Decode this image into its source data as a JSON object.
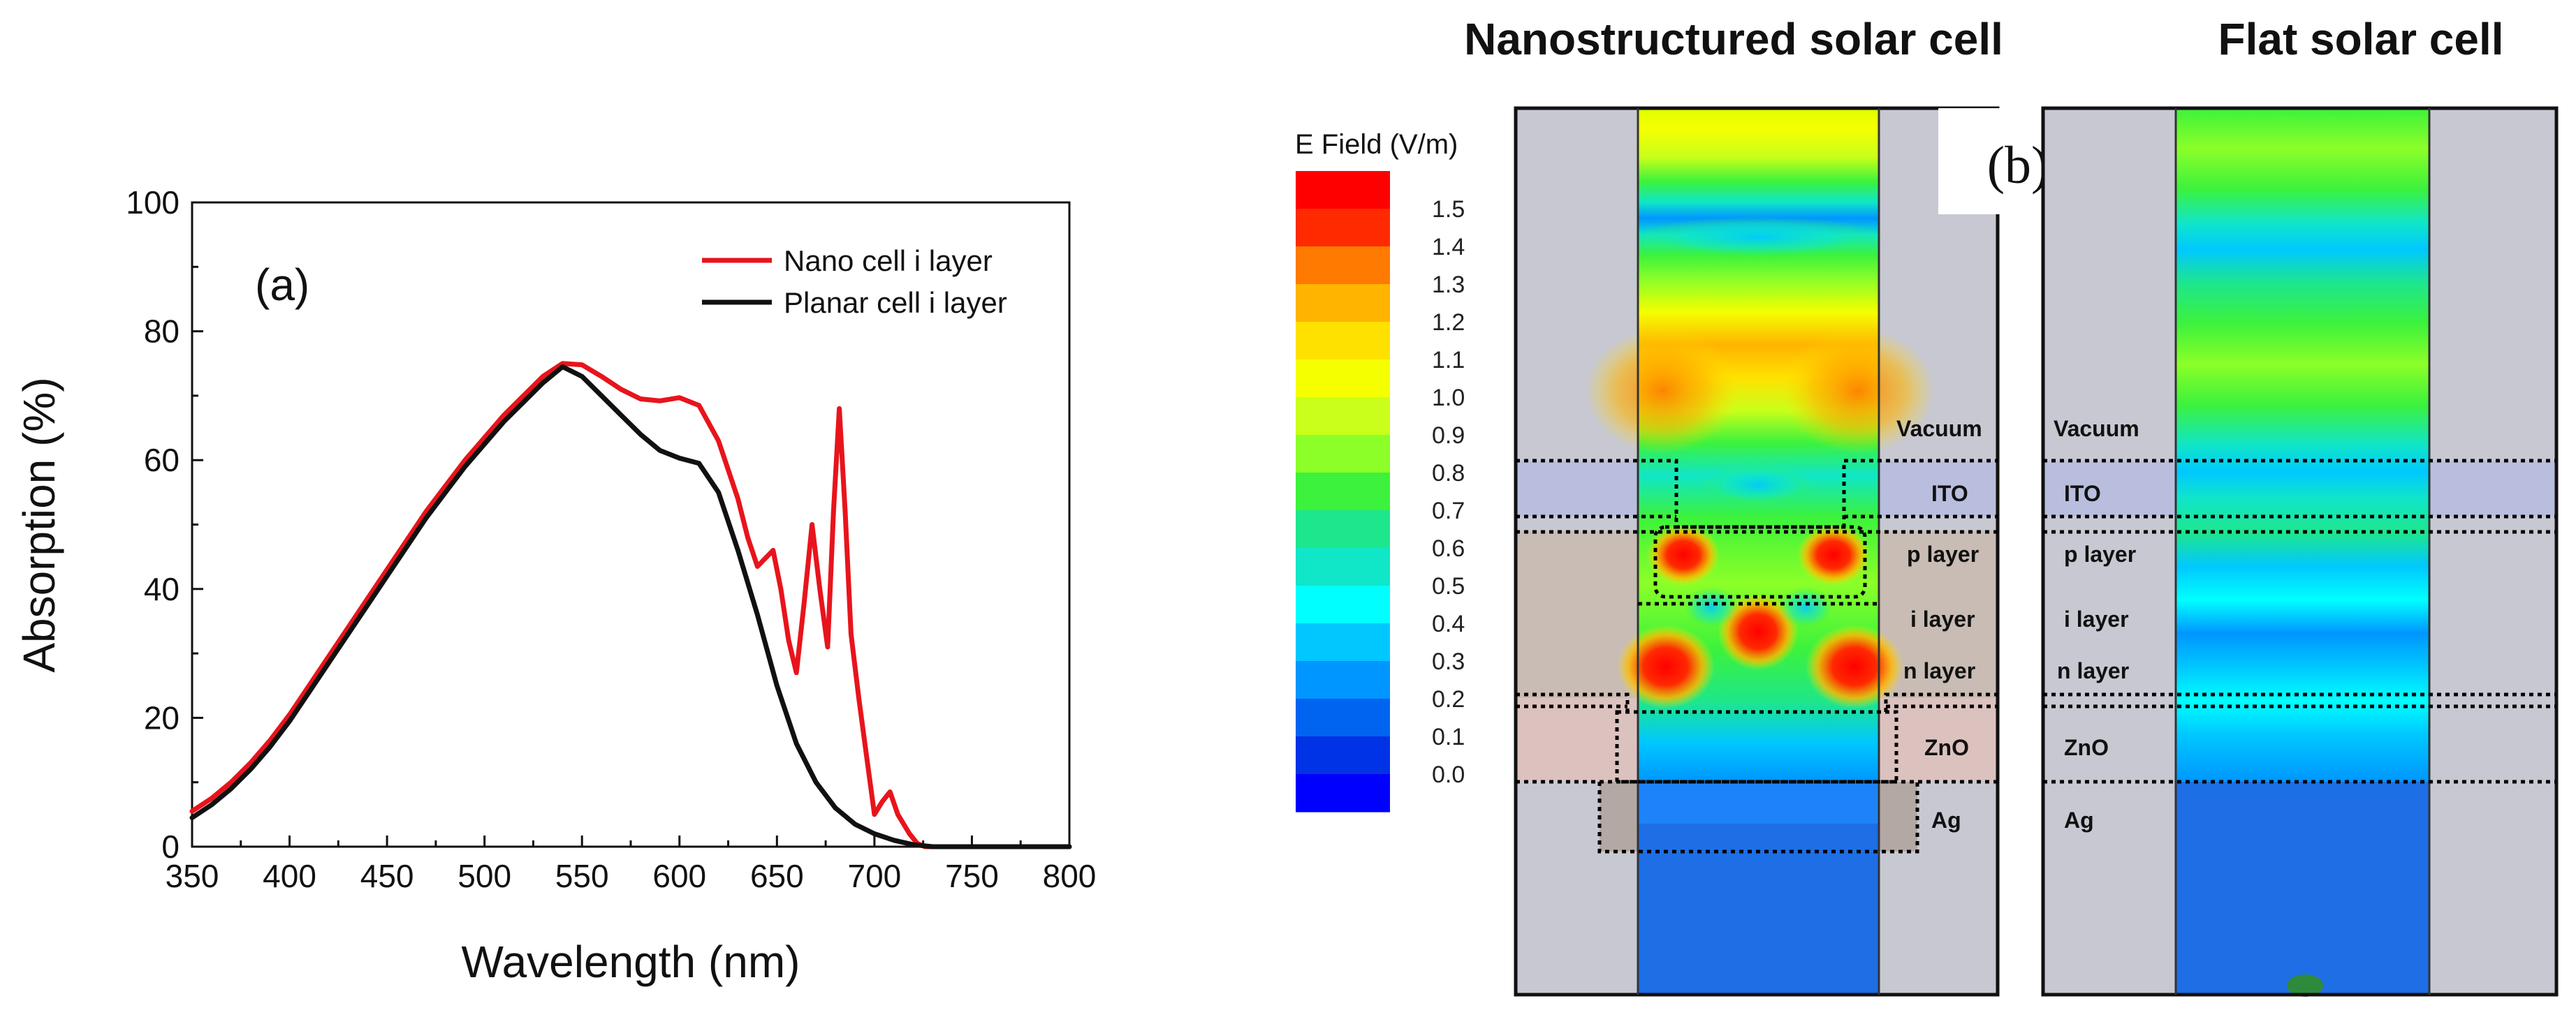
{
  "chart_data": [
    {
      "type": "line",
      "panel_label": "(a)",
      "xlabel": "Wavelength (nm)",
      "ylabel": "Absorption (%)",
      "xlim": [
        350,
        800
      ],
      "ylim": [
        0,
        100
      ],
      "x_ticks": [
        "350",
        "400",
        "450",
        "500",
        "550",
        "600",
        "650",
        "700",
        "750",
        "800"
      ],
      "y_ticks": [
        "0",
        "20",
        "40",
        "60",
        "80",
        "100"
      ],
      "legend_position": "top-right",
      "series": [
        {
          "name": "Nano cell i layer",
          "color": "#e8141c",
          "points": [
            [
              350,
              5.5
            ],
            [
              360,
              7.5
            ],
            [
              370,
              10
            ],
            [
              380,
              13
            ],
            [
              390,
              16.5
            ],
            [
              400,
              20.5
            ],
            [
              410,
              25
            ],
            [
              420,
              29.5
            ],
            [
              430,
              34
            ],
            [
              440,
              38.5
            ],
            [
              450,
              43
            ],
            [
              460,
              47.5
            ],
            [
              470,
              52
            ],
            [
              480,
              56
            ],
            [
              490,
              60
            ],
            [
              500,
              63.5
            ],
            [
              510,
              67
            ],
            [
              520,
              70
            ],
            [
              530,
              73
            ],
            [
              540,
              75
            ],
            [
              550,
              74.8
            ],
            [
              560,
              73
            ],
            [
              570,
              71
            ],
            [
              580,
              69.5
            ],
            [
              590,
              69.2
            ],
            [
              600,
              69.7
            ],
            [
              610,
              68.5
            ],
            [
              620,
              63
            ],
            [
              630,
              54
            ],
            [
              635,
              48
            ],
            [
              640,
              43.5
            ],
            [
              648,
              46
            ],
            [
              652,
              40
            ],
            [
              656,
              32
            ],
            [
              660,
              27
            ],
            [
              664,
              38
            ],
            [
              668,
              50
            ],
            [
              672,
              40
            ],
            [
              676,
              31
            ],
            [
              679,
              52
            ],
            [
              682,
              68
            ],
            [
              685,
              52
            ],
            [
              688,
              33
            ],
            [
              692,
              23
            ],
            [
              696,
              14
            ],
            [
              700,
              5
            ],
            [
              704,
              7
            ],
            [
              708,
              8.5
            ],
            [
              712,
              5
            ],
            [
              718,
              2
            ],
            [
              722,
              0.5
            ],
            [
              726,
              0
            ],
            [
              800,
              0
            ]
          ]
        },
        {
          "name": "Planar cell i layer",
          "color": "#111111",
          "points": [
            [
              350,
              4.5
            ],
            [
              360,
              6.5
            ],
            [
              370,
              9
            ],
            [
              380,
              12
            ],
            [
              390,
              15.5
            ],
            [
              400,
              19.5
            ],
            [
              410,
              24
            ],
            [
              420,
              28.5
            ],
            [
              430,
              33
            ],
            [
              440,
              37.5
            ],
            [
              450,
              42
            ],
            [
              460,
              46.5
            ],
            [
              470,
              51
            ],
            [
              480,
              55
            ],
            [
              490,
              59
            ],
            [
              500,
              62.5
            ],
            [
              510,
              66
            ],
            [
              520,
              69
            ],
            [
              530,
              72
            ],
            [
              540,
              74.5
            ],
            [
              550,
              73
            ],
            [
              560,
              70
            ],
            [
              570,
              67
            ],
            [
              580,
              64
            ],
            [
              590,
              61.5
            ],
            [
              600,
              60.3
            ],
            [
              610,
              59.5
            ],
            [
              620,
              55
            ],
            [
              630,
              46
            ],
            [
              640,
              36
            ],
            [
              650,
              25
            ],
            [
              660,
              16
            ],
            [
              670,
              10
            ],
            [
              680,
              6
            ],
            [
              690,
              3.5
            ],
            [
              700,
              2
            ],
            [
              710,
              1
            ],
            [
              720,
              0.3
            ],
            [
              730,
              0
            ],
            [
              800,
              0
            ]
          ]
        }
      ]
    },
    {
      "type": "heatmap",
      "panel_label": "(b)",
      "titles": [
        "Nanostructured solar cell",
        "Flat solar cell"
      ],
      "colorbar_title": "E Field  (V/m)",
      "colorbar_ticks": [
        "1.5",
        "1.4",
        "1.3",
        "1.2",
        "1.1",
        "1.0",
        "0.9",
        "0.8",
        "0.7",
        "0.6",
        "0.5",
        "0.4",
        "0.3",
        "0.2",
        "0.1",
        "0.0"
      ],
      "colorbar_colors": [
        "#ff0000",
        "#ff2a00",
        "#ff7a00",
        "#ffb400",
        "#ffe100",
        "#f5ff00",
        "#c9ff1a",
        "#8cff28",
        "#3cf23c",
        "#1ee68c",
        "#10e6c8",
        "#00ffff",
        "#00c8ff",
        "#0096ff",
        "#0064f0",
        "#0032e6",
        "#0000ff"
      ],
      "layers": [
        "Vacuum",
        "ITO",
        "p layer",
        "i layer",
        "n layer",
        "ZnO",
        "Ag"
      ]
    }
  ]
}
